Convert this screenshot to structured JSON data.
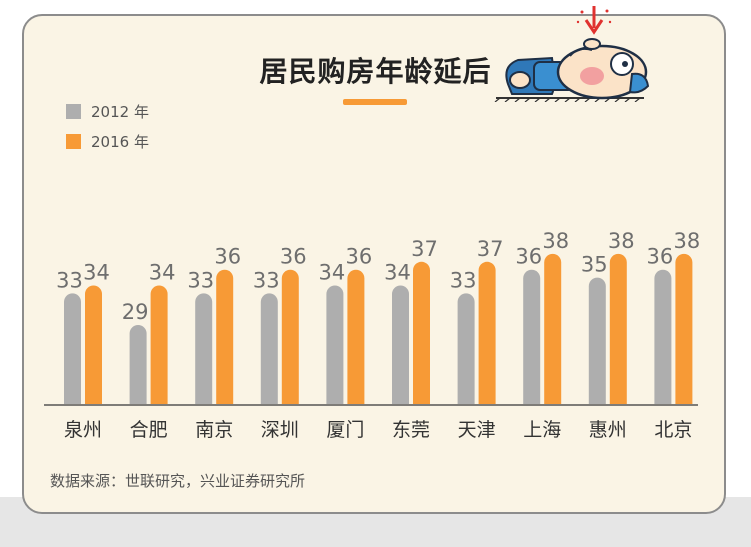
{
  "title": "居民购房年龄延后",
  "source": "数据来源：世联研究，兴业证券研究所",
  "colors": {
    "series_2012": "#aeaeae",
    "series_2016": "#f79a36",
    "accent": "#f79a36",
    "card_bg": "#faf4e5"
  },
  "legend": [
    {
      "label": "2012 年",
      "color": "#aeaeae"
    },
    {
      "label": "2016 年",
      "color": "#f79a36"
    }
  ],
  "chart_data": {
    "type": "bar",
    "title": "居民购房年龄延后",
    "categories": [
      "泉州",
      "合肥",
      "南京",
      "深圳",
      "厦门",
      "东莞",
      "天津",
      "上海",
      "惠州",
      "北京"
    ],
    "series": [
      {
        "name": "2012 年",
        "values": [
          33,
          29,
          33,
          33,
          34,
          34,
          33,
          36,
          35,
          36
        ]
      },
      {
        "name": "2016 年",
        "values": [
          34,
          34,
          36,
          36,
          36,
          37,
          37,
          38,
          38,
          38
        ]
      }
    ],
    "xlabel": "",
    "ylabel": "",
    "legend_position": "top-left",
    "grid": false
  }
}
